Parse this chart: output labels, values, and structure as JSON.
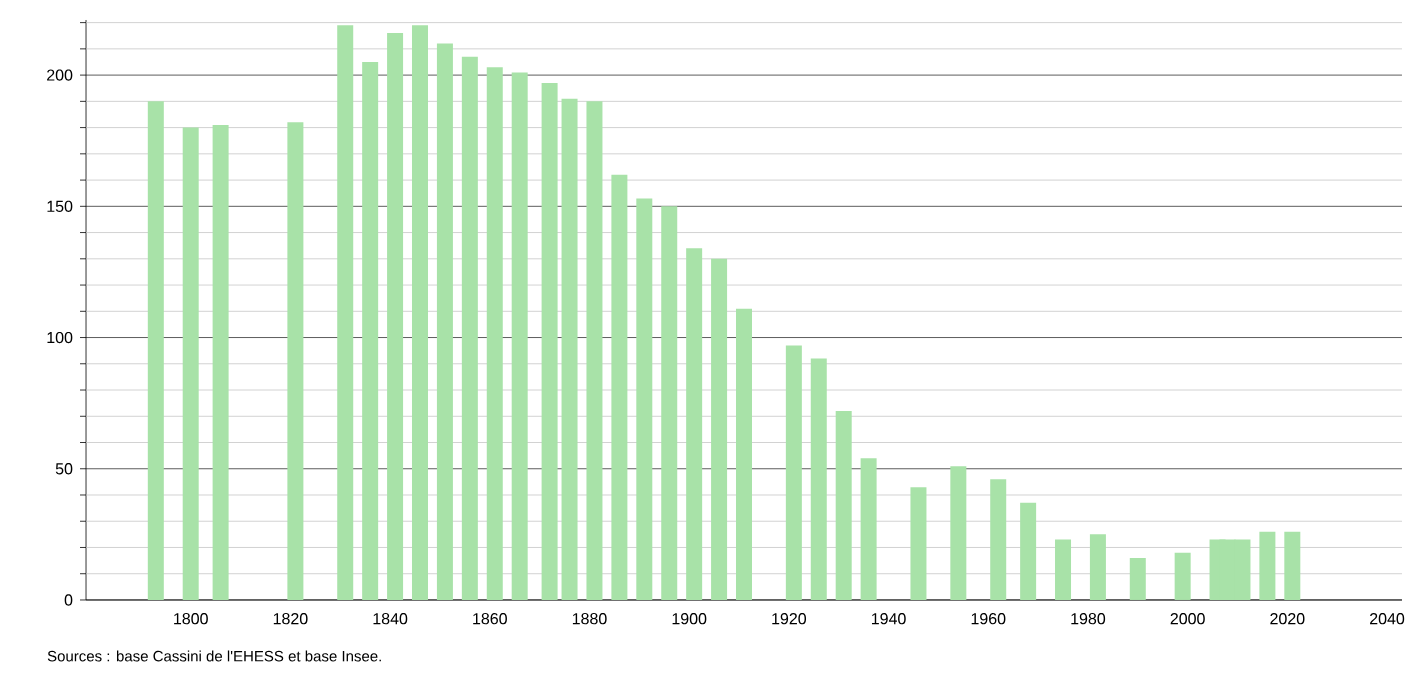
{
  "chart_data": {
    "type": "bar",
    "color": "#a8e2a8",
    "x": [
      1793,
      1800,
      1806,
      1821,
      1831,
      1836,
      1841,
      1846,
      1851,
      1856,
      1861,
      1866,
      1872,
      1876,
      1881,
      1886,
      1891,
      1896,
      1901,
      1906,
      1911,
      1921,
      1926,
      1931,
      1936,
      1946,
      1954,
      1962,
      1968,
      1975,
      1982,
      1990,
      1999,
      2006,
      2008,
      2011,
      2016,
      2021
    ],
    "values": [
      190,
      180,
      181,
      182,
      219,
      205,
      216,
      219,
      212,
      207,
      203,
      201,
      197,
      191,
      190,
      162,
      153,
      150,
      134,
      130,
      111,
      97,
      92,
      72,
      54,
      43,
      51,
      46,
      37,
      23,
      25,
      16,
      18,
      23,
      23,
      23,
      26,
      26
    ],
    "xlim": [
      1779,
      2043
    ],
    "xticks": [
      1800,
      1820,
      1840,
      1860,
      1880,
      1900,
      1920,
      1940,
      1960,
      1980,
      2000,
      2020,
      2040
    ],
    "ylim": [
      0,
      221
    ],
    "yticks": [
      0,
      {
        "value": 10,
        "label": null
      },
      {
        "value": 20,
        "label": null
      },
      {
        "value": 30,
        "label": null
      },
      {
        "value": 40,
        "label": null
      },
      50,
      {
        "value": 60,
        "label": null
      },
      {
        "value": 70,
        "label": null
      },
      {
        "value": 80,
        "label": null
      },
      {
        "value": 90,
        "label": null
      },
      100,
      {
        "value": 110,
        "label": null
      },
      {
        "value": 120,
        "label": null
      },
      {
        "value": 130,
        "label": null
      },
      {
        "value": 140,
        "label": null
      },
      150,
      {
        "value": 160,
        "label": null
      },
      {
        "value": 170,
        "label": null
      },
      {
        "value": 180,
        "label": null
      },
      {
        "value": 190,
        "label": null
      },
      200,
      {
        "value": 210,
        "label": null
      },
      {
        "value": 220,
        "label": null
      }
    ],
    "grid": "y",
    "annotations": [
      "Sources : base Cassini de l'EHESS et base Insee."
    ]
  }
}
